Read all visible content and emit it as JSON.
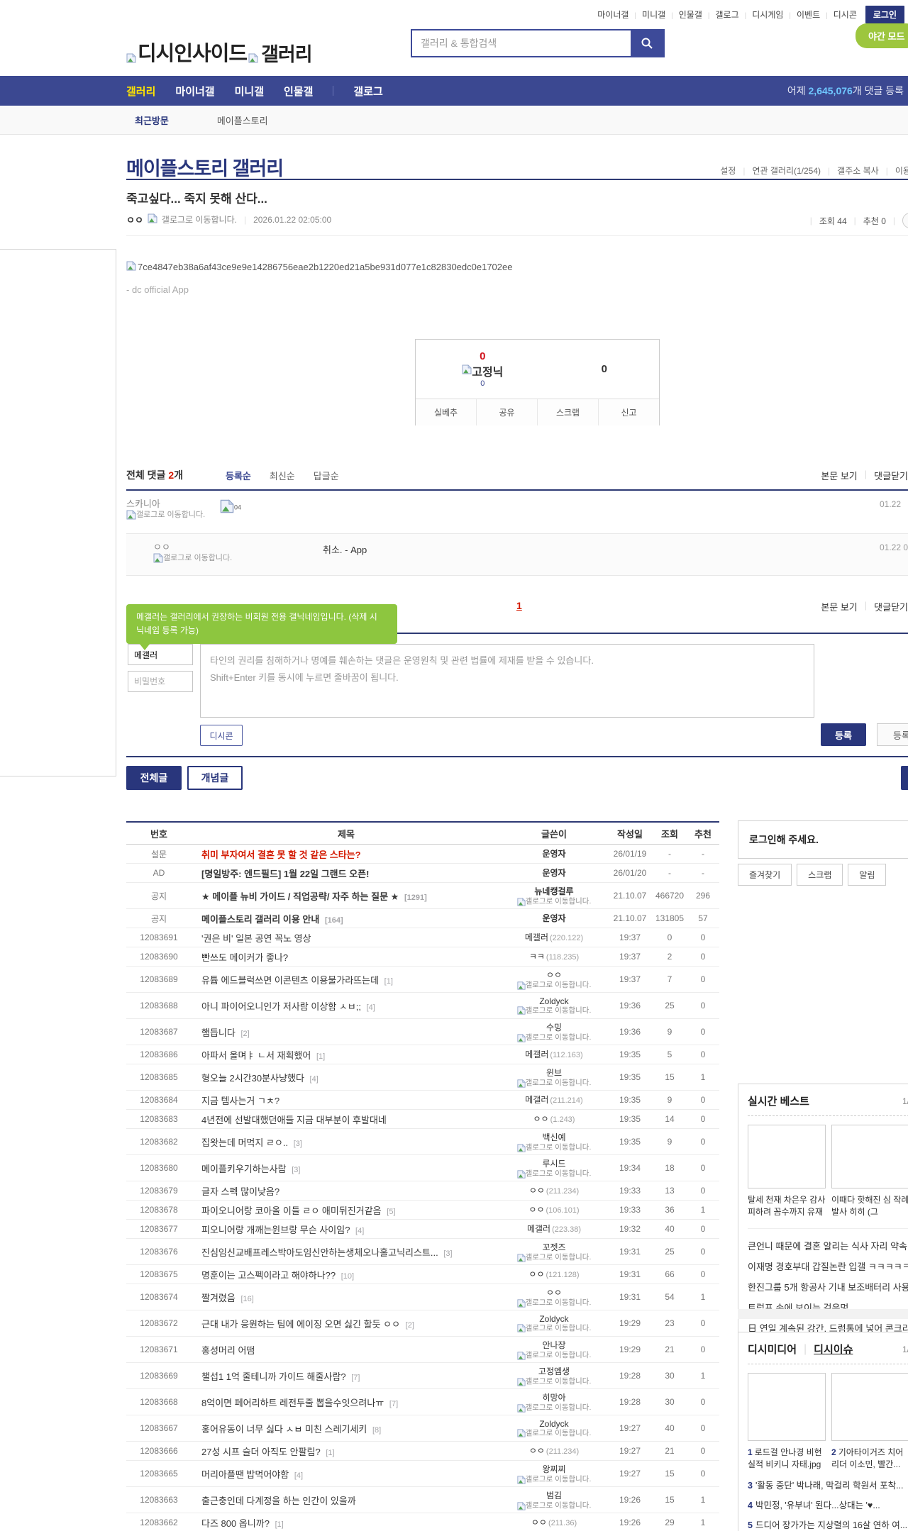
{
  "top_util": {
    "links": [
      "마이너갤",
      "미니갤",
      "인물갤",
      "갤로그",
      "디시게임",
      "이벤트",
      "디시콘"
    ],
    "login_label": "로그인"
  },
  "header": {
    "logo_text1": "디시인사이드",
    "logo_text2": "갤러리",
    "search_placeholder": "갤러리 & 통합검색",
    "night_mode_label": "야간 모드"
  },
  "gnb": {
    "items": [
      "갤러리",
      "마이너갤",
      "미니갤",
      "인물갤",
      "갤로그"
    ],
    "active_index": 0,
    "divider_before": 4,
    "yesterday_prefix": "어제 ",
    "yesterday_count": "2,645,076",
    "yesterday_suffix": "개 댓글 등록"
  },
  "visit": {
    "label": "최근방문",
    "current": "메이플스토리"
  },
  "gallery": {
    "title": "메이플스토리 갤러리",
    "utils": [
      "설정",
      "연관 갤러리(1/254)",
      "갤주소 복사",
      "이용안내"
    ]
  },
  "post": {
    "title": "죽고싶다... 죽지 못해 산다...",
    "author": "ㅇㅇ",
    "gallog_text": "갤로그로 이동합니다.",
    "date": "2026.01.22 02:05:00",
    "views_label": "조회",
    "views": "44",
    "rec_label": "추천",
    "rec": "0",
    "body_alt": "7ce4847eb38a6af43ce9e9e14286756eae2b1220ed21a5be931d077e1c82830edc0e1702ee",
    "body_sign": "- dc official App"
  },
  "vote": {
    "up": "0",
    "fixed_label": "고정닉",
    "fixed_count": "0",
    "down": "0",
    "buttons": [
      "실베추",
      "공유",
      "스크랩",
      "신고"
    ]
  },
  "comments": {
    "total_label": "전체 댓글",
    "count": "2",
    "count_suffix": "개",
    "sorts": [
      "등록순",
      "최신순",
      "답글순"
    ],
    "view_post": "본문 보기",
    "close_label": "댓글닫기",
    "page": "1",
    "items": [
      {
        "nick": "스카니아",
        "gallog": "갤로그로 이동합니다.",
        "content_alt": "04",
        "date": "01.22"
      },
      {
        "nick": "ㅇㅇ",
        "gallog": "갤로그로 이동합니다.",
        "content": "취소. - App",
        "date": "01.22 02"
      }
    ],
    "tooltip": "메갤러는 갤러리에서 권장하는 비회원 전용 갤닉네임입니다. (삭제 시 닉네임 등록 가능)",
    "form": {
      "nick_value": "메갤러",
      "pw_placeholder": "비밀번호",
      "placeholder_line1": "타인의 권리를 침해하거나 명예를 훼손하는 댓글은 운영원칙 및 관련 법률에 제재를 받을 수 있습니다.",
      "placeholder_line2": "Shift+Enter 키를 동시에 누르면 줄바꿈이 됩니다.",
      "dccon_label": "디시콘",
      "submit_label": "등록",
      "submit2_label": "등록"
    }
  },
  "board": {
    "tabs": [
      {
        "label": "전체글",
        "active": true
      },
      {
        "label": "개념글",
        "active": false
      }
    ],
    "headers": [
      "번호",
      "제목",
      "글쓴이",
      "작성일",
      "조회",
      "추천"
    ],
    "rows": [
      {
        "no": "설문",
        "title": "취미 부자여서 결혼 못 할 것 같은 스타는?",
        "style": "survey",
        "author": "운영자",
        "atype": "plain",
        "date": "26/01/19",
        "views": "-",
        "rec": "-"
      },
      {
        "no": "AD",
        "title": "[명일방주: 엔드필드] 1월 22일 그랜드 오픈!",
        "style": "ad",
        "author": "운영자",
        "atype": "plain",
        "date": "26/01/20",
        "views": "-",
        "rec": "-"
      },
      {
        "no": "공지",
        "title": "★ 메이플 뉴비 가이드 / 직업공략/ 자주 하는 질문 ★",
        "count": "1291",
        "style": "notice",
        "author": "뉴네캥걸루",
        "atype": "gallog",
        "date": "21.10.07",
        "views": "466720",
        "rec": "296"
      },
      {
        "no": "공지",
        "title": "메이플스토리 갤러리 이용 안내",
        "count": "164",
        "style": "notice",
        "author": "운영자",
        "atype": "plain",
        "date": "21.10.07",
        "views": "131805",
        "rec": "57"
      },
      {
        "no": "12083691",
        "title": "'권은 비' 일본 공연 꼭노 영상",
        "author": "메갤러",
        "atype": "ip",
        "ip": "(220.122)",
        "date": "19:37",
        "views": "0",
        "rec": "0"
      },
      {
        "no": "12083690",
        "title": "빤쓰도 메이커가 좋나?",
        "author": "ㅋㅋ",
        "atype": "ip",
        "ip": "(118.235)",
        "date": "19:37",
        "views": "2",
        "rec": "0"
      },
      {
        "no": "12083689",
        "title": "유튭 에드블럭쓰면 이콘텐츠 이용불가라뜨는데",
        "count": "1",
        "author": "ㅇㅇ",
        "atype": "gallog",
        "date": "19:37",
        "views": "7",
        "rec": "0"
      },
      {
        "no": "12083688",
        "title": "아니 파이어오니인가 저사람 이상함 ㅅㅂ;;",
        "count": "4",
        "author": "Zoldyck",
        "atype": "gallog",
        "date": "19:36",
        "views": "25",
        "rec": "0"
      },
      {
        "no": "12083687",
        "title": "햄듭니다",
        "count": "2",
        "author": "수밍",
        "atype": "gallog",
        "date": "19:36",
        "views": "9",
        "rec": "0"
      },
      {
        "no": "12083686",
        "title": "아파서 올며ㅑ ㄴ서 재획했어",
        "count": "1",
        "author": "메갤러",
        "atype": "ip",
        "ip": "(112.163)",
        "date": "19:35",
        "views": "5",
        "rec": "0"
      },
      {
        "no": "12083685",
        "title": "형오늘 2시간30분사냥했다",
        "count": "4",
        "author": "윈브",
        "atype": "gallog",
        "date": "19:35",
        "views": "15",
        "rec": "1"
      },
      {
        "no": "12083684",
        "title": "지금 템사는거 ㄱㅊ?",
        "author": "메갤러",
        "atype": "ip",
        "ip": "(211.214)",
        "date": "19:35",
        "views": "9",
        "rec": "0"
      },
      {
        "no": "12083683",
        "title": "4년전에 선발대했던애들 지금 대부분이 후발대네",
        "author": "ㅇㅇ",
        "atype": "ip",
        "ip": "(1.243)",
        "date": "19:35",
        "views": "14",
        "rec": "0"
      },
      {
        "no": "12083682",
        "title": "집왓는데 머먹지 ㄹㅇ..",
        "count": "3",
        "author": "백신예",
        "atype": "gallog",
        "date": "19:35",
        "views": "9",
        "rec": "0"
      },
      {
        "no": "12083680",
        "title": "메이플키우기하는사람",
        "count": "3",
        "author": "루시드",
        "atype": "gallog",
        "date": "19:34",
        "views": "18",
        "rec": "0"
      },
      {
        "no": "12083679",
        "title": "글자 스펙 많이낮음?",
        "author": "ㅇㅇ",
        "atype": "ip",
        "ip": "(211.234)",
        "date": "19:33",
        "views": "13",
        "rec": "0"
      },
      {
        "no": "12083678",
        "title": "파이오니어랑 코아올 이들 ㄹㅇ 애미뒤진거같음",
        "count": "5",
        "author": "ㅇㅇ",
        "atype": "ip",
        "ip": "(106.101)",
        "date": "19:33",
        "views": "36",
        "rec": "1"
      },
      {
        "no": "12083677",
        "title": "피오니어랑 개깨는윈브랑 무슨 사이임?",
        "count": "4",
        "author": "메갤러",
        "atype": "ip",
        "ip": "(223.38)",
        "date": "19:32",
        "views": "40",
        "rec": "0"
      },
      {
        "no": "12083676",
        "title": "진심임신교배프레스박아도임신안하는생체오나홀고닉리스트...",
        "count": "3",
        "author": "꼬젯즈",
        "atype": "gallog",
        "date": "19:31",
        "views": "25",
        "rec": "0"
      },
      {
        "no": "12083675",
        "title": "명훈이는 고스펙이라고 해야하나??",
        "count": "10",
        "author": "ㅇㅇ",
        "atype": "ip",
        "ip": "(121.128)",
        "date": "19:31",
        "views": "66",
        "rec": "0"
      },
      {
        "no": "12083674",
        "title": "짤겨렸음",
        "count": "16",
        "author": "ㅇㅇ",
        "atype": "gallog",
        "date": "19:31",
        "views": "54",
        "rec": "1"
      },
      {
        "no": "12083672",
        "title": "근대 내가 응원하는 팀에 에이징 오면 싫긴 할듯 ㅇㅇ",
        "count": "2",
        "author": "Zoldyck",
        "atype": "gallog",
        "date": "19:29",
        "views": "23",
        "rec": "0"
      },
      {
        "no": "12083671",
        "title": "홍성머리 어떰",
        "author": "안나장",
        "atype": "gallog",
        "date": "19:29",
        "views": "21",
        "rec": "0"
      },
      {
        "no": "12083669",
        "title": "챌섭1 1억 줄테니까 가이드 해줄사람?",
        "count": "7",
        "author": "고정엠생",
        "atype": "gallog",
        "date": "19:28",
        "views": "30",
        "rec": "1"
      },
      {
        "no": "12083668",
        "title": "8억이면 페어리하트 레전두줄 뽑을수잇으려나ㅠ",
        "count": "7",
        "author": "히망아",
        "atype": "gallog",
        "date": "19:28",
        "views": "30",
        "rec": "0"
      },
      {
        "no": "12083667",
        "title": "홍어유동이 너무 싫다 ㅅㅂ 미친 스레기세키",
        "count": "8",
        "author": "Zoldyck",
        "atype": "gallog",
        "date": "19:27",
        "views": "40",
        "rec": "0"
      },
      {
        "no": "12083666",
        "title": "27성 시프 슬더 아직도 안팔림?",
        "count": "1",
        "author": "ㅇㅇ",
        "atype": "ip",
        "ip": "(211.234)",
        "date": "19:27",
        "views": "21",
        "rec": "0"
      },
      {
        "no": "12083665",
        "title": "머리아플땐 밥먹어야함",
        "count": "4",
        "author": "왕찌찌",
        "atype": "gallog",
        "date": "19:27",
        "views": "15",
        "rec": "0"
      },
      {
        "no": "12083663",
        "title": "출근충인데 다계정을 하는 인간이 있을까",
        "author": "범김",
        "atype": "gallog",
        "date": "19:26",
        "views": "15",
        "rec": "1"
      },
      {
        "no": "12083662",
        "title": "다즈 800 옵니까?",
        "count": "1",
        "author": "ㅇㅇ",
        "atype": "ip",
        "ip": "(211.36)",
        "date": "19:26",
        "views": "29",
        "rec": "1"
      }
    ],
    "gallog_text": "갤로그로 이동합니다."
  },
  "sidebar": {
    "login": {
      "title": "로그인해 주세요.",
      "buttons": [
        "즐겨찾기",
        "스크랩",
        "알림"
      ]
    },
    "realtime": {
      "title": "실시간 베스트",
      "page": "1/",
      "captions": [
        "탈세 천재 차은우 감사 피하려 꼼수까지 유재석",
        "이때다 핫해진 심 작례 발사 히히 (그"
      ],
      "items": [
        "큰언니 때문에 결혼 알리는 식사 자리 약속 ...",
        "이재명 경호부대 갑질논란 입갤 ㅋㅋㅋㅋㅋ",
        "한진그룹 5개 항공사 기내 보조배터리 사용 ...",
        "트럼프 손에 보이는 검은멍",
        "日 연일 계속된 강간, 드럼통에 넣어 콘크리..."
      ]
    },
    "media": {
      "title": "디시미디어",
      "title2": "디시이슈",
      "page": "1/",
      "items": [
        {
          "no": "1",
          "text": "로드걸 안나경 비현실적 비키니 자태.jpg"
        },
        {
          "no": "2",
          "text": "기아타이거즈 치어리더 이소민, 빨간..."
        },
        {
          "no": "3",
          "text": "'활동 중단' 박나래, 막걸리 학원서 포착..."
        },
        {
          "no": "4",
          "text": "박민정, '유부녀' 된다...상대는 '♥..."
        },
        {
          "no": "5",
          "text": "드디어 장가가는 지상렬의 16살 연하 여..."
        }
      ]
    }
  }
}
